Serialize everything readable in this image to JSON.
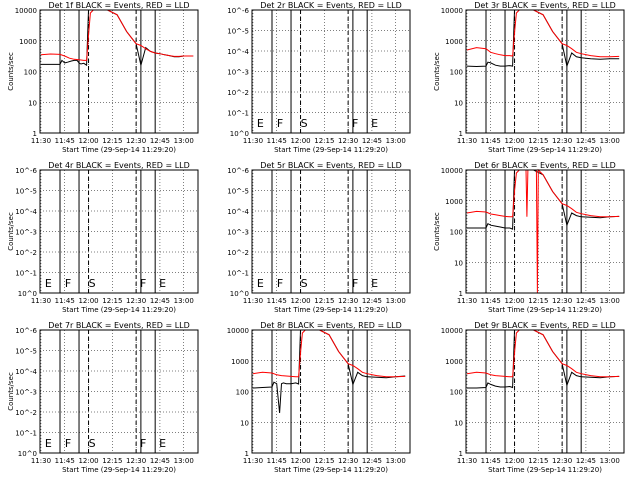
{
  "chart_data": [
    {
      "type": "line",
      "title": "Det 1f BLACK = Events, RED = LLD",
      "xlabel": "Start Time (29-Sep-14 11:29:20)",
      "ylabel": "Counts/sec",
      "yscale": "log",
      "yticks": [
        "1",
        "10",
        "100",
        "1000",
        "10000"
      ],
      "xticks": [
        "11:30",
        "11:45",
        "12:00",
        "12:15",
        "12:30",
        "12:45",
        "13:00"
      ],
      "markers": [],
      "series": [
        {
          "name": "Events",
          "color": "#000000",
          "x": [
            11.5,
            11.6,
            11.7,
            11.72,
            11.75,
            11.78,
            11.82,
            11.85,
            11.88,
            11.9,
            11.92,
            11.95,
            11.98,
            12.0,
            12.02,
            12.05,
            12.1,
            12.2,
            12.3,
            12.4,
            12.5,
            12.55,
            12.6,
            12.65,
            12.7,
            12.75,
            12.8,
            12.85,
            12.9,
            12.95,
            13.0,
            13.1
          ],
          "y": [
            170,
            170,
            170,
            230,
            190,
            200,
            220,
            230,
            230,
            190,
            175,
            185,
            160,
            10000,
            10000,
            10000,
            10000,
            10000,
            7000,
            2000,
            800,
            160,
            600,
            450,
            400,
            380,
            350,
            330,
            300,
            300,
            320,
            320
          ]
        },
        {
          "name": "LLD",
          "color": "#ff0000",
          "x": [
            11.5,
            11.6,
            11.7,
            11.75,
            11.8,
            11.85,
            11.9,
            11.95,
            11.98,
            12.0,
            12.02,
            12.05,
            12.1,
            12.2,
            12.3,
            12.4,
            12.5,
            12.55,
            12.6,
            12.65,
            12.7,
            12.75,
            12.8,
            12.85,
            12.9,
            12.95,
            13.0,
            13.1
          ],
          "y": [
            350,
            370,
            360,
            320,
            270,
            250,
            240,
            230,
            230,
            1500,
            8000,
            10000,
            10000,
            10000,
            7000,
            2000,
            800,
            700,
            550,
            450,
            400,
            380,
            350,
            330,
            310,
            310,
            320,
            320
          ]
        }
      ]
    },
    {
      "type": "line",
      "title": "Det 2r BLACK = Events, RED = LLD",
      "xlabel": "Start Time (29-Sep-14 11:29:20)",
      "ylabel": "",
      "yscale": "log",
      "yticks": [
        "10^0",
        "10^-1",
        "10^-2",
        "10^-3",
        "10^-4",
        "10^-5",
        "10^-6"
      ],
      "xticks": [
        "11:30",
        "11:45",
        "12:00",
        "12:15",
        "12:30",
        "12:45",
        "13:00"
      ],
      "markers": [
        "E",
        "F",
        "S",
        "F",
        "E"
      ],
      "series": []
    },
    {
      "type": "line",
      "title": "Det 3r BLACK = Events, RED = LLD",
      "xlabel": "Start Time (29-Sep-14 11:29:20)",
      "ylabel": "Counts/sec",
      "yscale": "log",
      "yticks": [
        "1",
        "10",
        "100",
        "1000",
        "10000"
      ],
      "xticks": [
        "11:30",
        "11:45",
        "12:00",
        "12:15",
        "12:30",
        "12:45",
        "13:00"
      ],
      "markers": [],
      "series": [
        {
          "name": "Events",
          "color": "#000000",
          "x": [
            11.5,
            11.6,
            11.7,
            11.72,
            11.75,
            11.8,
            11.85,
            11.9,
            11.95,
            11.98,
            12.0,
            12.05,
            12.1,
            12.2,
            12.3,
            12.4,
            12.5,
            12.55,
            12.6,
            12.65,
            12.7,
            12.8,
            12.9,
            13.0,
            13.1
          ],
          "y": [
            150,
            145,
            150,
            200,
            190,
            160,
            150,
            150,
            155,
            150,
            10000,
            10000,
            10000,
            10000,
            7000,
            2000,
            800,
            150,
            400,
            300,
            280,
            260,
            250,
            260,
            260
          ]
        },
        {
          "name": "LLD",
          "color": "#ff0000",
          "x": [
            11.5,
            11.6,
            11.7,
            11.75,
            11.8,
            11.85,
            11.9,
            11.95,
            11.98,
            12.0,
            12.02,
            12.05,
            12.1,
            12.2,
            12.3,
            12.4,
            12.5,
            12.55,
            12.6,
            12.65,
            12.7,
            12.8,
            12.9,
            13.0,
            13.1
          ],
          "y": [
            500,
            600,
            550,
            420,
            380,
            350,
            330,
            330,
            320,
            1800,
            8000,
            10000,
            10000,
            10000,
            7000,
            2000,
            800,
            700,
            550,
            420,
            380,
            330,
            300,
            300,
            310
          ]
        }
      ]
    },
    {
      "type": "line",
      "title": "Det 4r BLACK = Events, RED = LLD",
      "xlabel": "Start Time (29-Sep-14 11:29:20)",
      "ylabel": "Counts/sec",
      "yscale": "log",
      "yticks": [
        "10^0",
        "10^-1",
        "10^-2",
        "10^-3",
        "10^-4",
        "10^-5",
        "10^-6"
      ],
      "xticks": [
        "11:30",
        "11:45",
        "12:00",
        "12:15",
        "12:30",
        "12:45",
        "13:00"
      ],
      "markers": [
        "E",
        "F",
        "S",
        "F",
        "E"
      ],
      "series": []
    },
    {
      "type": "line",
      "title": "Det 5r BLACK = Events, RED = LLD",
      "xlabel": "Start Time (29-Sep-14 11:29:20)",
      "ylabel": "",
      "yscale": "log",
      "yticks": [
        "10^0",
        "10^-1",
        "10^-2",
        "10^-3",
        "10^-4",
        "10^-5",
        "10^-6"
      ],
      "xticks": [
        "11:30",
        "11:45",
        "12:00",
        "12:15",
        "12:30",
        "12:45",
        "13:00"
      ],
      "markers": [
        "E",
        "F",
        "S",
        "F",
        "E"
      ],
      "series": []
    },
    {
      "type": "line",
      "title": "Det 6r BLACK = Events, RED = LLD",
      "xlabel": "Start Time (29-Sep-14 11:29:20)",
      "ylabel": "Counts/sec",
      "yscale": "log",
      "yticks": [
        "1",
        "10",
        "100",
        "1000",
        "10000"
      ],
      "xticks": [
        "11:30",
        "11:45",
        "12:00",
        "12:15",
        "12:30",
        "12:45",
        "13:00"
      ],
      "markers": [],
      "series": [
        {
          "name": "Events",
          "color": "#000000",
          "x": [
            11.5,
            11.6,
            11.7,
            11.72,
            11.75,
            11.8,
            11.85,
            11.9,
            11.95,
            11.98,
            12.0,
            12.05,
            12.1,
            12.2,
            12.3,
            12.4,
            12.5,
            12.55,
            12.6,
            12.65,
            12.7,
            12.8,
            12.9,
            13.0,
            13.1
          ],
          "y": [
            130,
            130,
            130,
            180,
            160,
            150,
            140,
            130,
            130,
            120,
            10000,
            10000,
            10000,
            10000,
            7000,
            2000,
            800,
            160,
            400,
            330,
            300,
            290,
            280,
            300,
            310
          ]
        },
        {
          "name": "LLD",
          "color": "#ff0000",
          "x": [
            11.5,
            11.6,
            11.7,
            11.75,
            11.8,
            11.85,
            11.9,
            11.95,
            11.98,
            12.0,
            12.02,
            12.05,
            12.1,
            12.12,
            12.13,
            12.14,
            12.2,
            12.23,
            12.24,
            12.25,
            12.3,
            12.4,
            12.5,
            12.55,
            12.6,
            12.65,
            12.7,
            12.8,
            12.9,
            13.0,
            13.1
          ],
          "y": [
            400,
            450,
            430,
            370,
            350,
            330,
            310,
            300,
            300,
            2000,
            8000,
            10000,
            10000,
            10000,
            300,
            10000,
            10000,
            10000,
            1,
            10000,
            7000,
            2000,
            800,
            700,
            550,
            420,
            380,
            330,
            300,
            300,
            310
          ]
        }
      ]
    },
    {
      "type": "line",
      "title": "Det 7r BLACK = Events, RED = LLD",
      "xlabel": "Start Time (29-Sep-14 11:29:20)",
      "ylabel": "Counts/sec",
      "yscale": "log",
      "yticks": [
        "10^0",
        "10^-1",
        "10^-2",
        "10^-3",
        "10^-4",
        "10^-5",
        "10^-6"
      ],
      "xticks": [
        "11:30",
        "11:45",
        "12:00",
        "12:15",
        "12:30",
        "12:45",
        "13:00"
      ],
      "markers": [
        "E",
        "F",
        "S",
        "F",
        "E"
      ],
      "series": []
    },
    {
      "type": "line",
      "title": "Det 8r BLACK = Events, RED = LLD",
      "xlabel": "Start Time (29-Sep-14 11:29:20)",
      "ylabel": "",
      "yscale": "log",
      "yticks": [
        "1",
        "10",
        "100",
        "1000",
        "10000"
      ],
      "xticks": [
        "11:30",
        "11:45",
        "12:00",
        "12:15",
        "12:30",
        "12:45",
        "13:00"
      ],
      "markers": [],
      "series": [
        {
          "name": "Events",
          "color": "#000000",
          "x": [
            11.5,
            11.6,
            11.7,
            11.72,
            11.75,
            11.78,
            11.8,
            11.82,
            11.85,
            11.9,
            11.95,
            11.98,
            12.0,
            12.05,
            12.1,
            12.2,
            12.3,
            12.4,
            12.5,
            12.55,
            12.6,
            12.65,
            12.7,
            12.8,
            12.9,
            13.0,
            13.1
          ],
          "y": [
            130,
            135,
            140,
            200,
            180,
            20,
            180,
            190,
            180,
            180,
            190,
            175,
            10000,
            10000,
            10000,
            10000,
            7000,
            2000,
            800,
            170,
            420,
            330,
            300,
            290,
            280,
            300,
            320
          ]
        },
        {
          "name": "LLD",
          "color": "#ff0000",
          "x": [
            11.5,
            11.6,
            11.7,
            11.75,
            11.8,
            11.85,
            11.9,
            11.95,
            11.98,
            12.0,
            12.02,
            12.05,
            12.1,
            12.2,
            12.3,
            12.4,
            12.5,
            12.55,
            12.6,
            12.65,
            12.7,
            12.8,
            12.9,
            13.0,
            13.1
          ],
          "y": [
            380,
            420,
            400,
            350,
            330,
            320,
            310,
            300,
            300,
            1800,
            8000,
            10000,
            10000,
            10000,
            7000,
            2000,
            800,
            700,
            550,
            420,
            380,
            330,
            300,
            300,
            310
          ]
        }
      ]
    },
    {
      "type": "line",
      "title": "Det 9r BLACK = Events, RED = LLD",
      "xlabel": "Start Time (29-Sep-14 11:29:20)",
      "ylabel": "",
      "yscale": "log",
      "yticks": [
        "1",
        "10",
        "100",
        "1000",
        "10000"
      ],
      "xticks": [
        "11:30",
        "11:45",
        "12:00",
        "12:15",
        "12:30",
        "12:45",
        "13:00"
      ],
      "markers": [],
      "series": [
        {
          "name": "Events",
          "color": "#000000",
          "x": [
            11.5,
            11.6,
            11.7,
            11.72,
            11.75,
            11.8,
            11.85,
            11.9,
            11.95,
            11.98,
            12.0,
            12.05,
            12.1,
            12.2,
            12.3,
            12.4,
            12.5,
            12.55,
            12.6,
            12.65,
            12.7,
            12.8,
            12.9,
            13.0,
            13.1
          ],
          "y": [
            130,
            130,
            135,
            190,
            170,
            150,
            140,
            140,
            145,
            135,
            10000,
            10000,
            10000,
            10000,
            7000,
            2000,
            800,
            160,
            420,
            330,
            300,
            290,
            280,
            300,
            310
          ]
        },
        {
          "name": "LLD",
          "color": "#ff0000",
          "x": [
            11.5,
            11.6,
            11.7,
            11.75,
            11.8,
            11.85,
            11.9,
            11.95,
            11.98,
            12.0,
            12.02,
            12.05,
            12.1,
            12.2,
            12.3,
            12.4,
            12.5,
            12.55,
            12.6,
            12.65,
            12.7,
            12.8,
            12.9,
            13.0,
            13.1
          ],
          "y": [
            380,
            420,
            400,
            350,
            330,
            320,
            310,
            300,
            300,
            1800,
            8000,
            10000,
            10000,
            10000,
            7000,
            2000,
            800,
            700,
            550,
            420,
            380,
            330,
            300,
            300,
            310
          ]
        }
      ]
    }
  ]
}
